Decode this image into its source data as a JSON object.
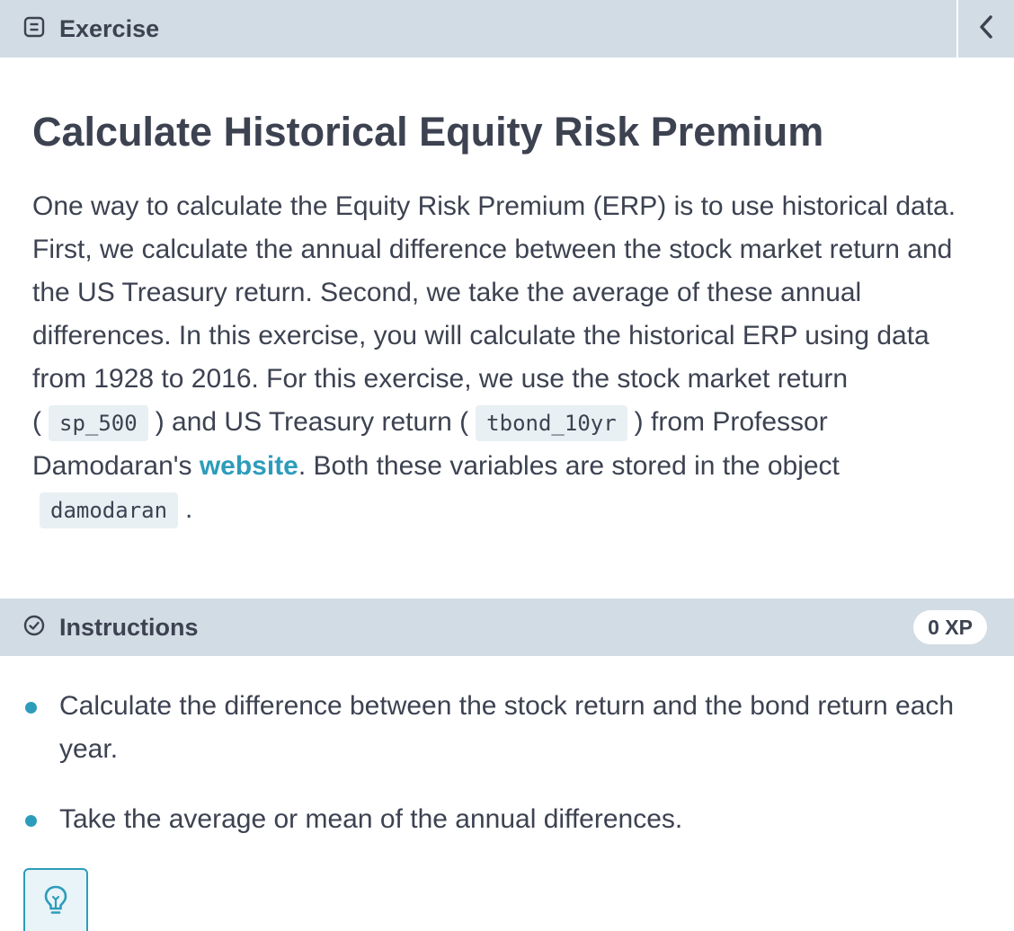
{
  "header": {
    "title": "Exercise",
    "icon": "document-icon",
    "collapse_icon": "chevron-left-icon"
  },
  "exercise": {
    "title": "Calculate Historical Equity Risk Premium",
    "desc_part1": "One way to calculate the Equity Risk Premium (ERP) is to use historical data. First, we calculate the annual difference between the stock market return and the US Treasury return. Second, we take the average of these annual differences. In this exercise, you will calculate the historical ERP using data from 1928 to 2016. For this exercise, we use the stock market return (",
    "code_sp500": "sp_500",
    "desc_part2": ") and US Treasury return (",
    "code_tbond": "tbond_10yr",
    "desc_part3": ") from Professor Damodaran's ",
    "link_text": "website",
    "desc_part4": ". Both these variables are stored in the object",
    "code_object": "damodaran",
    "desc_part5": "."
  },
  "instructions": {
    "title": "Instructions",
    "icon": "check-circle-icon",
    "xp": "0 XP",
    "items": [
      "Calculate the difference between the stock return and the bond return each year.",
      "Take the average or mean of the annual differences."
    ]
  },
  "hint": {
    "icon": "lightbulb-icon"
  },
  "colors": {
    "header_bg": "#d1dce4",
    "accent": "#2d9cba",
    "text": "#3d4251",
    "code_bg": "#e8f0f3"
  }
}
